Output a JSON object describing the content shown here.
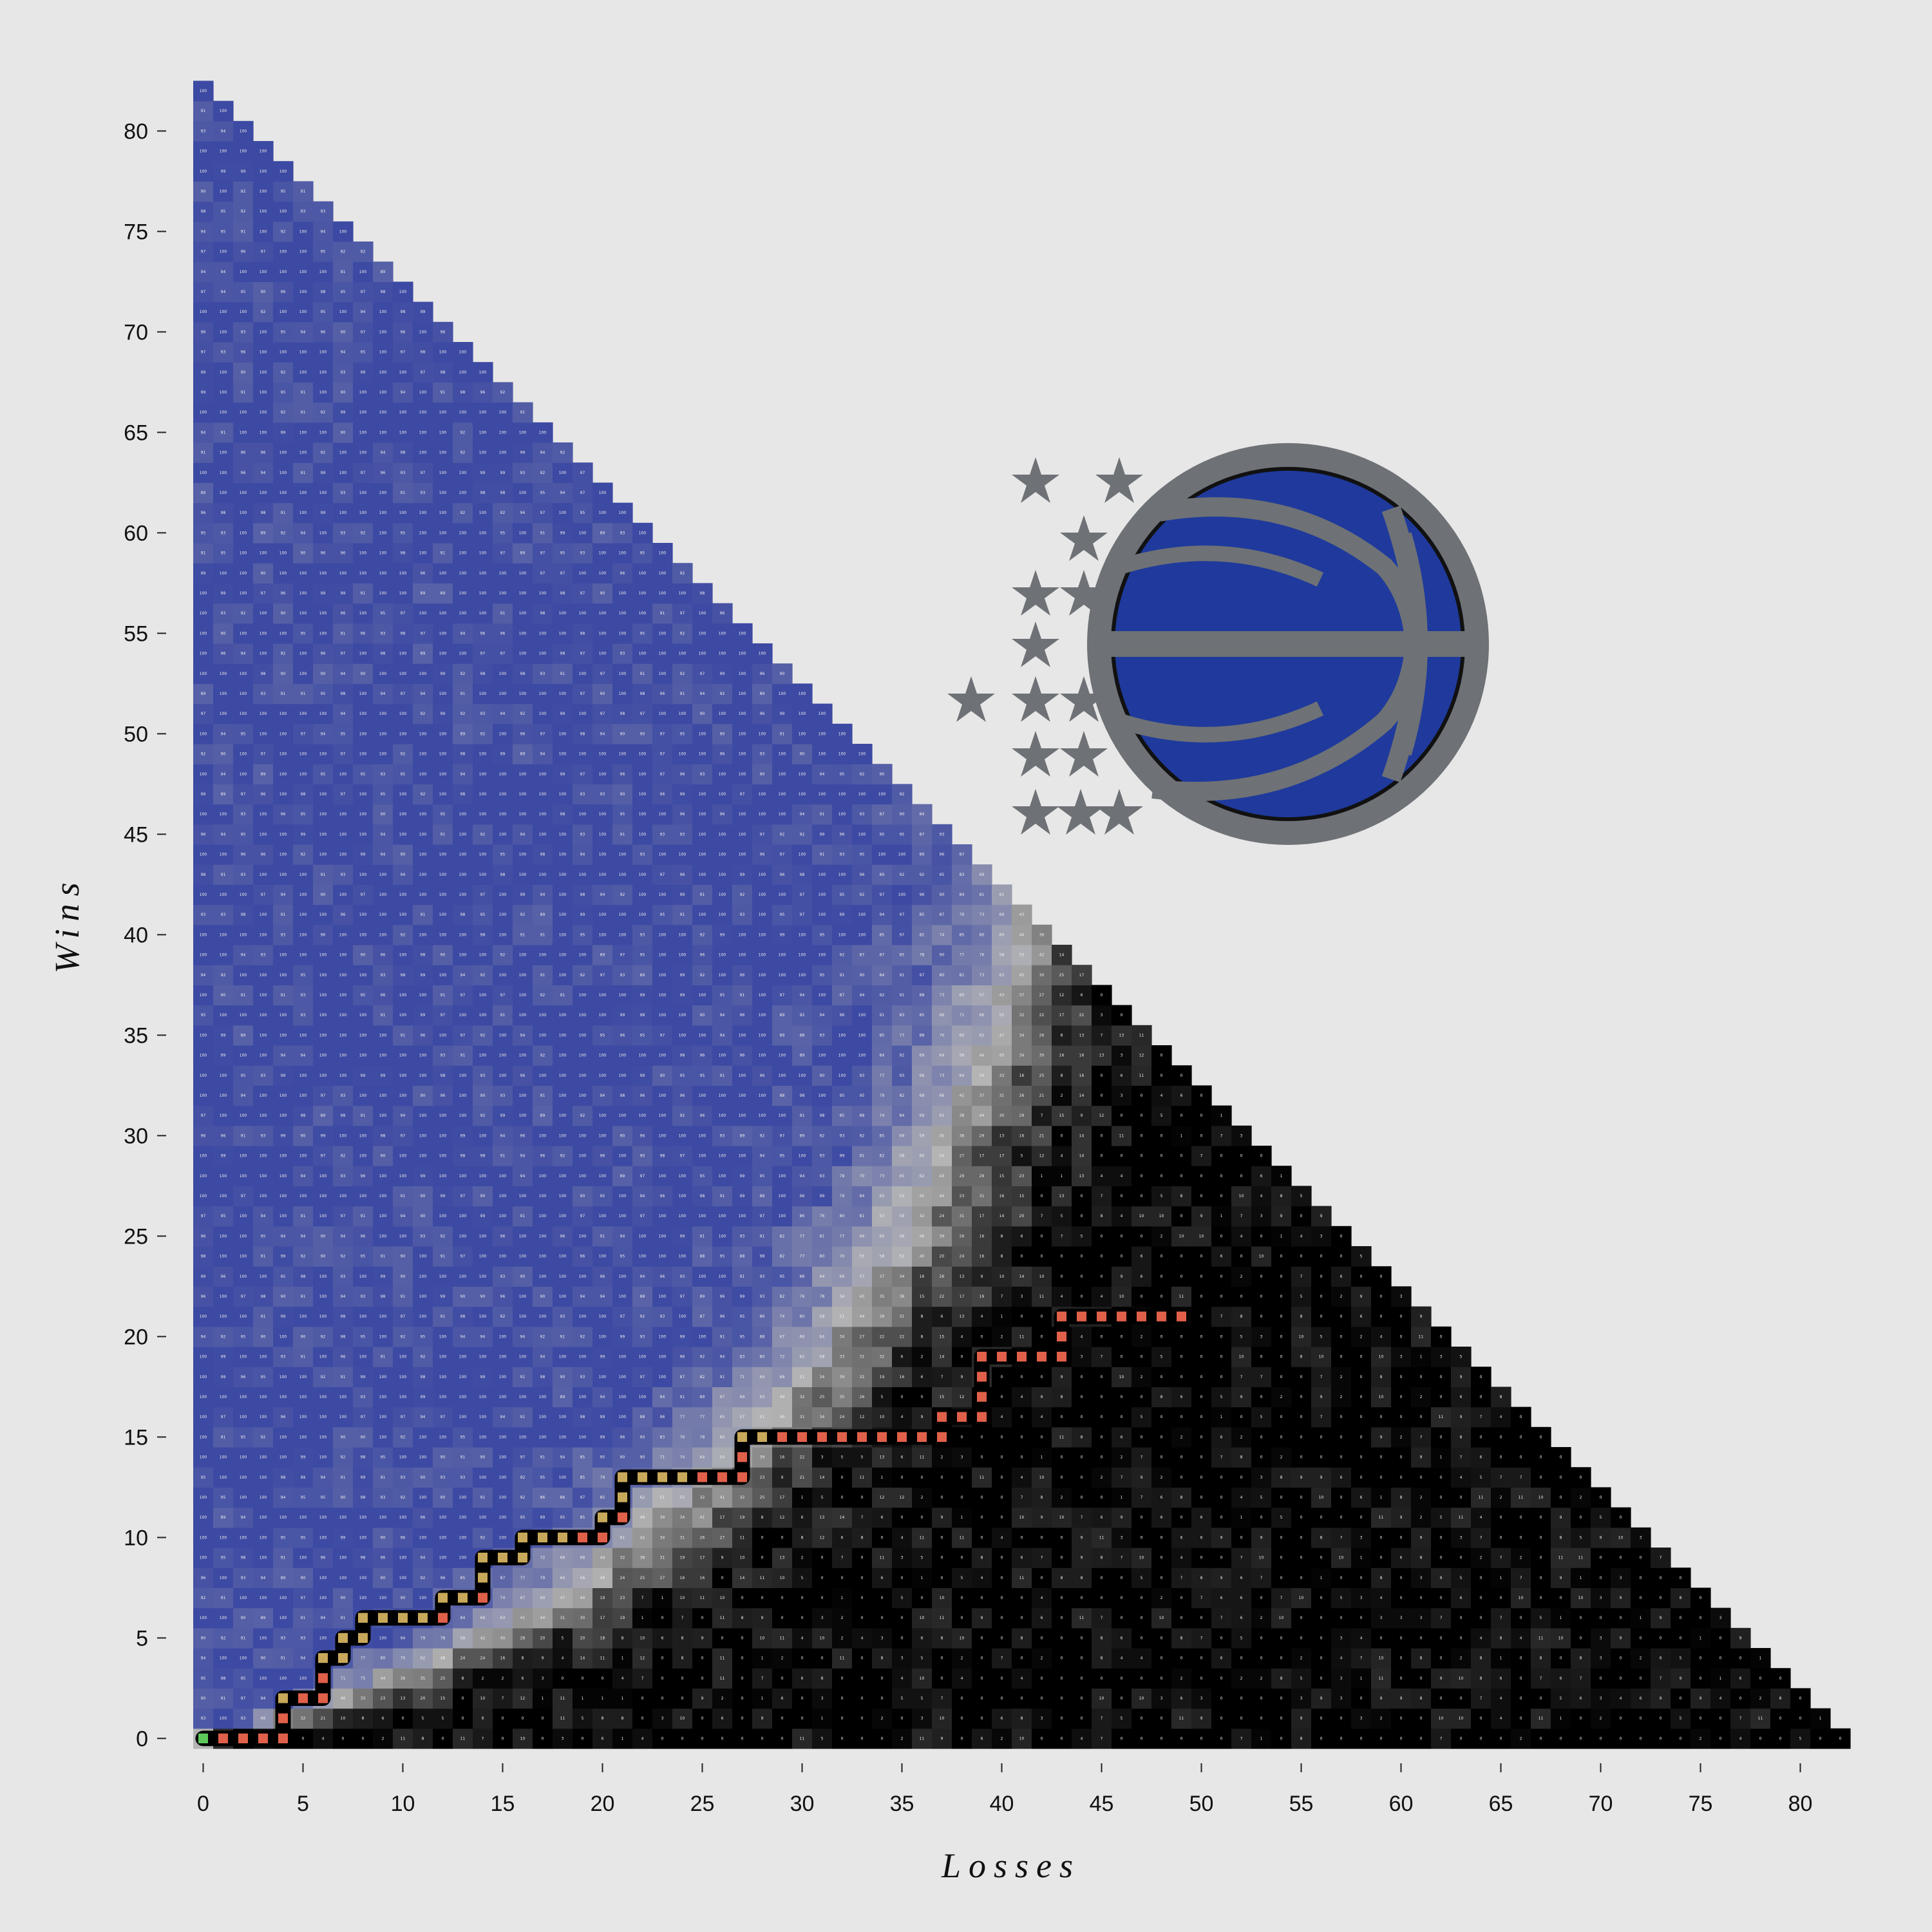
{
  "chart_data": {
    "type": "heatmap",
    "xlabel": "Losses",
    "ylabel": "Wins",
    "xlim": [
      0,
      82
    ],
    "ylim": [
      0,
      82
    ],
    "x_ticks": [
      0,
      5,
      10,
      15,
      20,
      25,
      30,
      35,
      40,
      45,
      50,
      55,
      60,
      65,
      70,
      75,
      80
    ],
    "y_ticks": [
      0,
      5,
      10,
      15,
      20,
      25,
      30,
      35,
      40,
      45,
      50,
      55,
      60,
      65,
      70,
      75,
      80
    ],
    "games_in_season": 82,
    "value_range": [
      0,
      100
    ],
    "colors": {
      "background": "#e7e7e7",
      "high": "#3d4aa3",
      "mid": "#b4b4b4",
      "low": "#000000",
      "path_win": "#5cc85a",
      "path_mid": "#c8a85a",
      "path_loss": "#e0604a",
      "logo_ball": "#1f3a9c",
      "logo_gray": "#6e7175"
    },
    "season_path": [
      {
        "losses": 0,
        "wins": 0
      },
      {
        "losses": 1,
        "wins": 0
      },
      {
        "losses": 2,
        "wins": 0
      },
      {
        "losses": 3,
        "wins": 0
      },
      {
        "losses": 4,
        "wins": 0
      },
      {
        "losses": 4,
        "wins": 1
      },
      {
        "losses": 4,
        "wins": 2
      },
      {
        "losses": 5,
        "wins": 2
      },
      {
        "losses": 6,
        "wins": 2
      },
      {
        "losses": 6,
        "wins": 3
      },
      {
        "losses": 6,
        "wins": 4
      },
      {
        "losses": 7,
        "wins": 4
      },
      {
        "losses": 7,
        "wins": 5
      },
      {
        "losses": 8,
        "wins": 5
      },
      {
        "losses": 8,
        "wins": 6
      },
      {
        "losses": 9,
        "wins": 6
      },
      {
        "losses": 10,
        "wins": 6
      },
      {
        "losses": 11,
        "wins": 6
      },
      {
        "losses": 12,
        "wins": 6
      },
      {
        "losses": 12,
        "wins": 7
      },
      {
        "losses": 13,
        "wins": 7
      },
      {
        "losses": 14,
        "wins": 7
      },
      {
        "losses": 14,
        "wins": 8
      },
      {
        "losses": 14,
        "wins": 9
      },
      {
        "losses": 15,
        "wins": 9
      },
      {
        "losses": 16,
        "wins": 9
      },
      {
        "losses": 16,
        "wins": 10
      },
      {
        "losses": 17,
        "wins": 10
      },
      {
        "losses": 18,
        "wins": 10
      },
      {
        "losses": 19,
        "wins": 10
      },
      {
        "losses": 20,
        "wins": 10
      },
      {
        "losses": 20,
        "wins": 11
      },
      {
        "losses": 21,
        "wins": 11
      },
      {
        "losses": 21,
        "wins": 12
      },
      {
        "losses": 21,
        "wins": 13
      },
      {
        "losses": 22,
        "wins": 13
      },
      {
        "losses": 23,
        "wins": 13
      },
      {
        "losses": 24,
        "wins": 13
      },
      {
        "losses": 25,
        "wins": 13
      },
      {
        "losses": 26,
        "wins": 13
      },
      {
        "losses": 27,
        "wins": 13
      },
      {
        "losses": 27,
        "wins": 14
      },
      {
        "losses": 27,
        "wins": 15
      },
      {
        "losses": 28,
        "wins": 15
      },
      {
        "losses": 29,
        "wins": 15
      },
      {
        "losses": 30,
        "wins": 15
      },
      {
        "losses": 31,
        "wins": 15
      },
      {
        "losses": 32,
        "wins": 15
      },
      {
        "losses": 33,
        "wins": 15
      },
      {
        "losses": 34,
        "wins": 15
      },
      {
        "losses": 35,
        "wins": 15
      },
      {
        "losses": 36,
        "wins": 15
      },
      {
        "losses": 37,
        "wins": 15
      },
      {
        "losses": 37,
        "wins": 16
      },
      {
        "losses": 38,
        "wins": 16
      },
      {
        "losses": 39,
        "wins": 16
      },
      {
        "losses": 39,
        "wins": 17
      },
      {
        "losses": 39,
        "wins": 18
      },
      {
        "losses": 39,
        "wins": 19
      },
      {
        "losses": 40,
        "wins": 19
      },
      {
        "losses": 41,
        "wins": 19
      },
      {
        "losses": 42,
        "wins": 19
      },
      {
        "losses": 43,
        "wins": 19
      },
      {
        "losses": 43,
        "wins": 20
      },
      {
        "losses": 43,
        "wins": 21
      },
      {
        "losses": 44,
        "wins": 21
      },
      {
        "losses": 45,
        "wins": 21
      },
      {
        "losses": 46,
        "wins": 21
      },
      {
        "losses": 47,
        "wins": 21
      },
      {
        "losses": 48,
        "wins": 21
      },
      {
        "losses": 49,
        "wins": 21
      }
    ],
    "grid": false,
    "legend": "none"
  }
}
